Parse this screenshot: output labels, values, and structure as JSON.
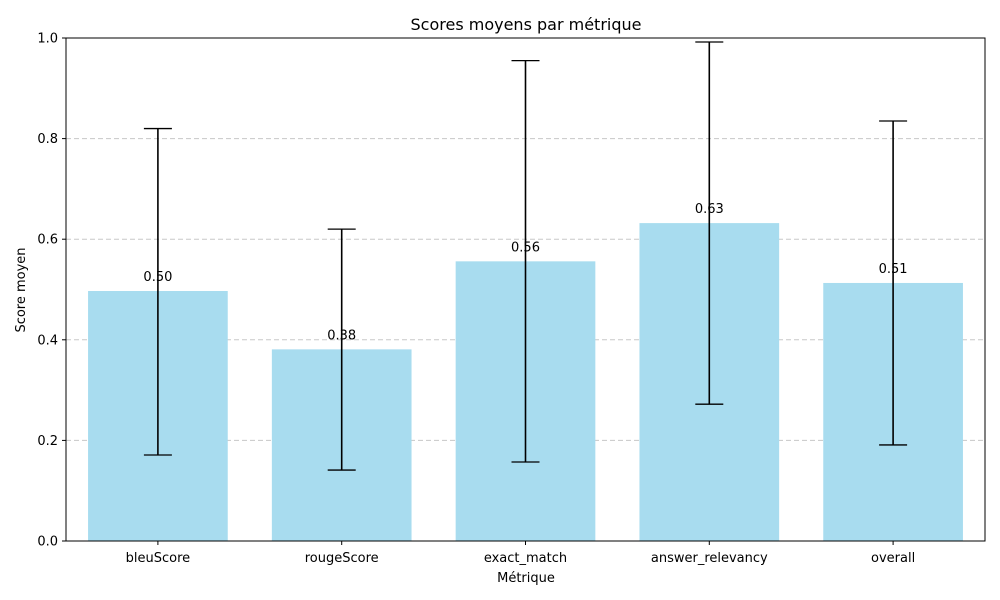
{
  "chart_data": {
    "type": "bar",
    "title": "Scores moyens par métrique",
    "xlabel": "Métrique",
    "ylabel": "Score moyen",
    "categories": [
      "bleuScore",
      "rougeScore",
      "exact_match",
      "answer_relevancy",
      "overall"
    ],
    "values": [
      0.497,
      0.381,
      0.556,
      0.632,
      0.513
    ],
    "value_labels": [
      "0.50",
      "0.38",
      "0.56",
      "0.63",
      "0.51"
    ],
    "error_low": [
      0.171,
      0.141,
      0.157,
      0.272,
      0.191
    ],
    "error_high": [
      0.82,
      0.62,
      0.955,
      0.992,
      0.835
    ],
    "ylim": [
      0,
      1.0
    ],
    "yticks": [
      0.0,
      0.2,
      0.4,
      0.6,
      0.8,
      1.0
    ],
    "ytick_labels": [
      "0.0",
      "0.2",
      "0.4",
      "0.6",
      "0.8",
      "1.0"
    ],
    "grid": "y-dashed",
    "colors": {
      "bar": "#a8dcef",
      "error": "#000000",
      "grid": "#c8c8c8"
    }
  }
}
